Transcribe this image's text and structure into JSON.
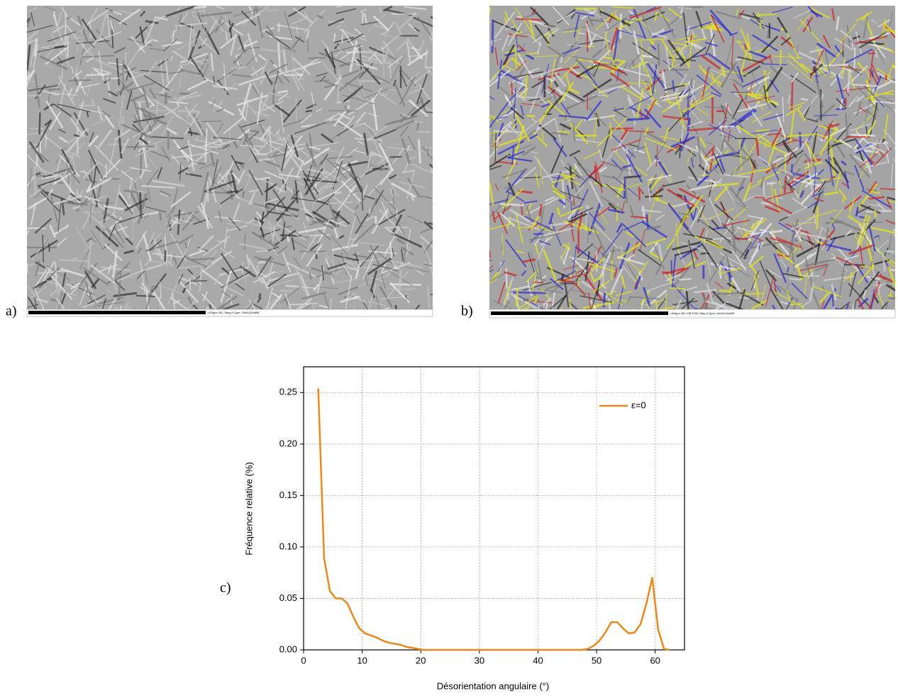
{
  "panels": [
    {
      "label": "a)",
      "caption": "=100µm; BC; Step=0.2µm; Grid1141x856"
    },
    {
      "label": "b)",
      "caption": "=100µm; BC+GB FGB; Step=0.2µm; Grid1141x856"
    }
  ],
  "chart_data": {
    "type": "line",
    "panel_label": "c)",
    "x_label": "Désorientation angulaire (°)",
    "y_label": "Fréquence relative (%)",
    "xlim": [
      0,
      65
    ],
    "xticks": [
      0,
      10,
      20,
      30,
      40,
      50,
      60
    ],
    "ylim": [
      0,
      0.275
    ],
    "yticks": [
      {
        "value": 0,
        "label": "0.00"
      },
      0.05,
      {
        "value": 0.1,
        "label": "0.10"
      },
      0.15,
      {
        "value": 0.2,
        "label": "0.20"
      },
      0.25
    ],
    "grid": true,
    "legend": "upper right",
    "x": [
      2.5,
      3.5,
      4.5,
      5.5,
      6.5,
      7.5,
      8.5,
      9.5,
      10.5,
      11.5,
      12.5,
      13.5,
      14.5,
      15.5,
      16.5,
      17.5,
      18.5,
      19.5,
      20.5,
      25,
      30,
      35,
      40,
      45,
      47.5,
      48.5,
      49.5,
      50.5,
      51.5,
      52.5,
      53.5,
      54.5,
      55.5,
      56.5,
      57.5,
      58.5,
      59.5,
      60.5,
      61.5,
      62.5
    ],
    "series": [
      {
        "name": "ε=0",
        "color": "#e8891c",
        "values": [
          0.254,
          0.089,
          0.057,
          0.05,
          0.05,
          0.045,
          0.032,
          0.021,
          0.016,
          0.014,
          0.012,
          0.009,
          0.007,
          0.006,
          0.005,
          0.003,
          0.002,
          0.001,
          0,
          0,
          0,
          0,
          0,
          0,
          0,
          0.001,
          0.004,
          0.009,
          0.017,
          0.027,
          0.027,
          0.021,
          0.016,
          0.017,
          0.025,
          0.045,
          0.07,
          0.02,
          0.001,
          0
        ]
      }
    ]
  }
}
